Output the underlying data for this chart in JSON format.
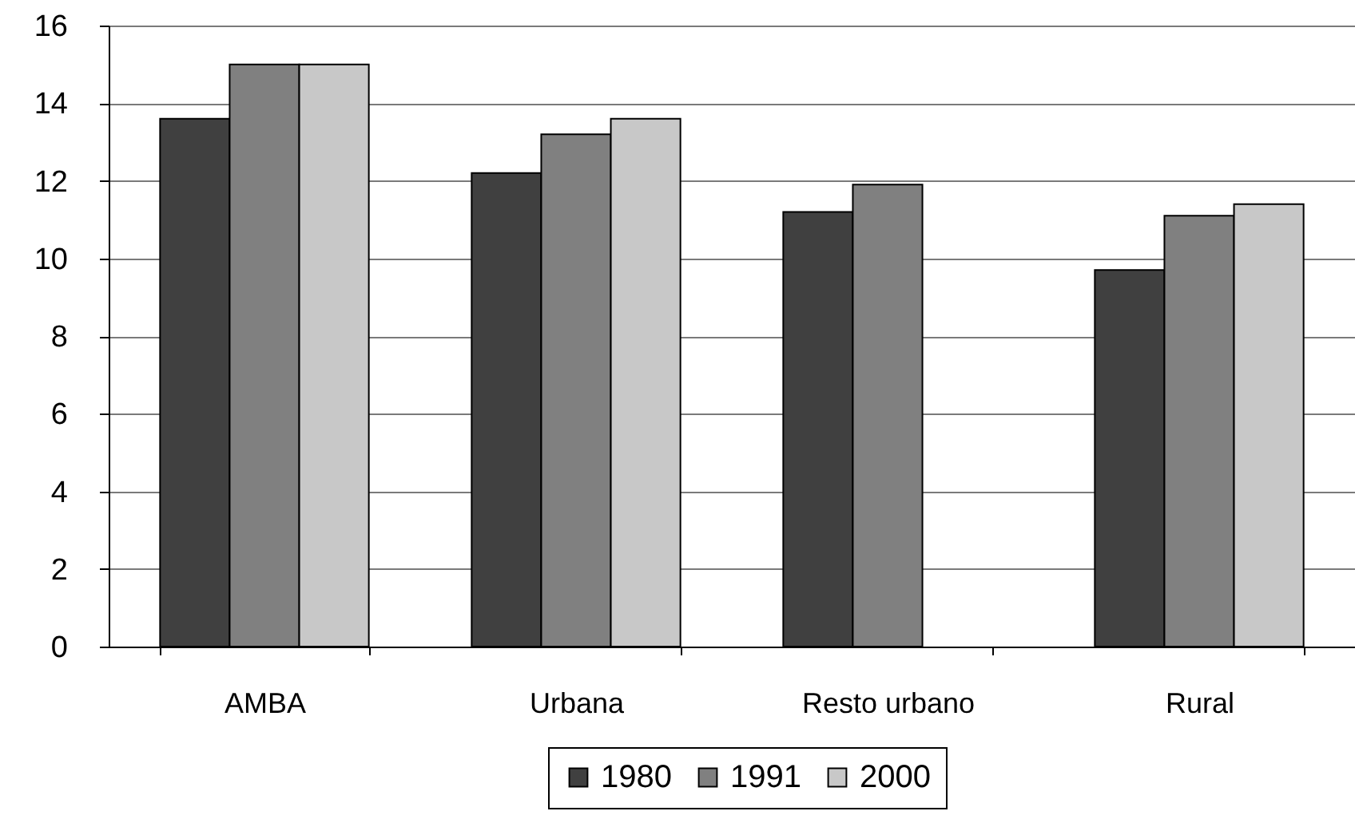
{
  "chart_data": {
    "type": "bar",
    "categories": [
      "AMBA",
      "Urbana",
      "Resto urbano",
      "Rural"
    ],
    "series": [
      {
        "name": "1980",
        "color": "#404040",
        "values": [
          13.6,
          12.2,
          11.2,
          9.7
        ]
      },
      {
        "name": "1991",
        "color": "#808080",
        "values": [
          15.0,
          13.2,
          11.9,
          11.1
        ]
      },
      {
        "name": "2000",
        "color": "#c8c8c8",
        "values": [
          15.0,
          13.6,
          null,
          11.4
        ]
      }
    ],
    "ylim": [
      0,
      16
    ],
    "yticks": [
      0,
      2,
      4,
      6,
      8,
      10,
      12,
      14,
      16
    ],
    "grid": "y",
    "legend": "bottom"
  }
}
